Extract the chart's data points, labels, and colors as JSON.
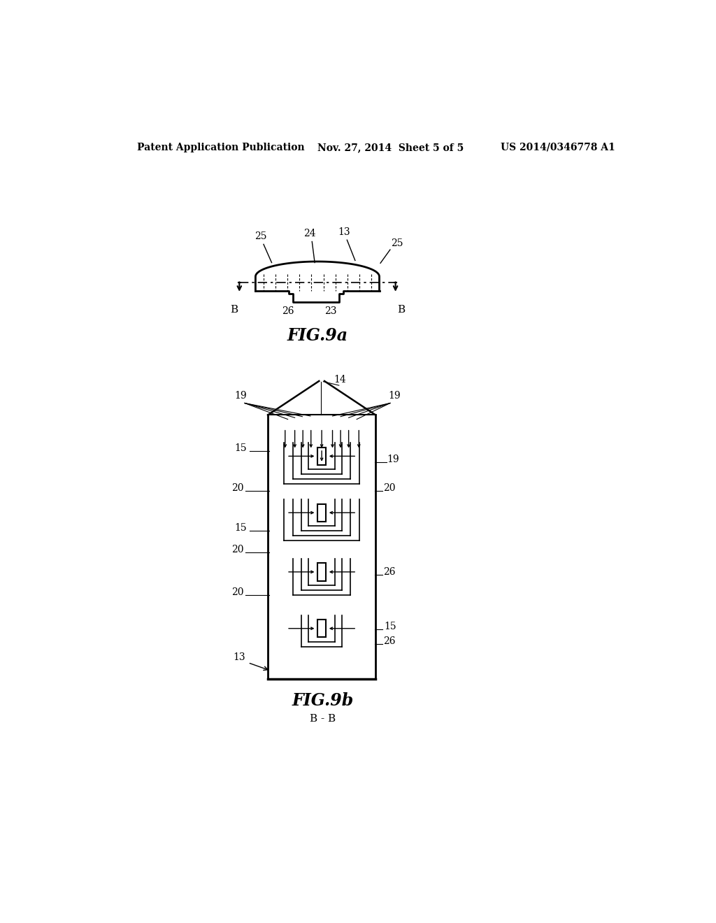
{
  "bg_color": "#ffffff",
  "header_left": "Patent Application Publication",
  "header_mid": "Nov. 27, 2014  Sheet 5 of 5",
  "header_right": "US 2014/0346778 A1",
  "fig9a_label": "FIG.9a",
  "fig9b_label": "FIG.9b",
  "bb_label": "B - B"
}
